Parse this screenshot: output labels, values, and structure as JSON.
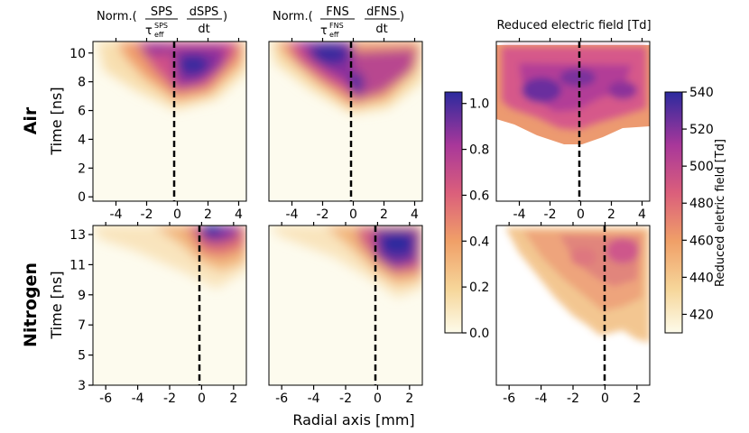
{
  "figure": {
    "x_axis_label": "Radial axis [mm]",
    "row_labels": [
      {
        "name": "Air",
        "ylabel": "Time [ns]"
      },
      {
        "name": "Nitrogen",
        "ylabel": "Time [ns]"
      }
    ],
    "column_titles": {
      "sps": {
        "prefix": "Norm.(",
        "num": "SPS",
        "den_main": "τ",
        "den_sup": "SPS",
        "den_sub": "eff",
        "deriv_num": "dSPS",
        "deriv_den": "dt",
        "suffix": ")"
      },
      "fns": {
        "prefix": "Norm.(",
        "num": "FNS",
        "den_main": "τ",
        "den_sup": "FNS",
        "den_sub": "eff",
        "deriv_num": "dFNS",
        "deriv_den": "dt",
        "suffix": ")"
      },
      "field": "Reduced electric field [Td]"
    },
    "colorbar_norm": {
      "ticks": [
        "0.0",
        "0.2",
        "0.4",
        "0.6",
        "0.8",
        "1.0"
      ],
      "range": [
        0,
        1.05
      ]
    },
    "colorbar_field": {
      "label": "Reduced eletric field [Td]",
      "ticks": [
        "420",
        "440",
        "460",
        "480",
        "500",
        "520",
        "540"
      ],
      "range": [
        410,
        540
      ]
    }
  },
  "chart_data": [
    {
      "type": "heatmap",
      "name": "air-sps",
      "quantity": "Norm.(SPS/τ_eff^SPS) | dSPS/dt",
      "x_ticks": [
        "-4",
        "-2",
        "0",
        "2",
        "4"
      ],
      "y_ticks": [
        "0",
        "2",
        "4",
        "6",
        "8",
        "10"
      ],
      "xlim": [
        -5.5,
        4.5
      ],
      "ylim": [
        -0.3,
        10.8
      ],
      "divider_x": 0,
      "peak_region": {
        "x": [
          0,
          2.5
        ],
        "t": [
          7.5,
          10
        ],
        "value": 1.0
      }
    },
    {
      "type": "heatmap",
      "name": "air-fns",
      "quantity": "Norm.(FNS/τ_eff^FNS) | dFNS/dt",
      "x_ticks": [
        "-4",
        "-2",
        "0",
        "2",
        "4"
      ],
      "y_ticks": [
        "0",
        "2",
        "4",
        "6",
        "8",
        "10"
      ],
      "xlim": [
        -5.5,
        4.5
      ],
      "ylim": [
        -0.3,
        10.8
      ],
      "divider_x": 0,
      "peak_region": {
        "x": [
          -2.5,
          0.5
        ],
        "t": [
          8,
          10.5
        ],
        "value": 1.0
      }
    },
    {
      "type": "heatmap",
      "name": "air-field",
      "quantity": "Reduced electric field [Td]",
      "x_ticks": [
        "-4",
        "-2",
        "0",
        "2",
        "4"
      ],
      "xlim": [
        -5.5,
        4.5
      ],
      "ylim": [
        -0.3,
        10.8
      ],
      "divider_x": 0,
      "value_range": [
        420,
        540
      ],
      "peak_region": {
        "x": [
          -3,
          2
        ],
        "t": [
          6,
          9
        ],
        "value": 530
      }
    },
    {
      "type": "heatmap",
      "name": "nitrogen-sps",
      "quantity": "Norm.(SPS/τ_eff^SPS) | dSPS/dt",
      "x_ticks": [
        "-6",
        "-4",
        "-2",
        "0",
        "2"
      ],
      "y_ticks": [
        "3",
        "5",
        "7",
        "9",
        "11",
        "13"
      ],
      "xlim": [
        -6.8,
        2.8
      ],
      "ylim": [
        3,
        13.6
      ],
      "divider_x": 0,
      "peak_region": {
        "x": [
          0,
          1.5
        ],
        "t": [
          12.5,
          13.5
        ],
        "value": 1.0
      }
    },
    {
      "type": "heatmap",
      "name": "nitrogen-fns",
      "quantity": "Norm.(FNS/τ_eff^FNS) | dFNS/dt",
      "x_ticks": [
        "-6",
        "-4",
        "-2",
        "0",
        "2"
      ],
      "y_ticks": [
        "3",
        "5",
        "7",
        "9",
        "11",
        "13"
      ],
      "xlim": [
        -6.8,
        2.8
      ],
      "ylim": [
        3,
        13.6
      ],
      "divider_x": 0,
      "peak_region": {
        "x": [
          0,
          2.3
        ],
        "t": [
          11.5,
          13.2
        ],
        "value": 1.0
      }
    },
    {
      "type": "heatmap",
      "name": "nitrogen-field",
      "quantity": "Reduced electric field [Td]",
      "x_ticks": [
        "-6",
        "-4",
        "-2",
        "0",
        "2"
      ],
      "xlim": [
        -6.8,
        2.8
      ],
      "ylim": [
        3,
        13.6
      ],
      "divider_x": 0,
      "value_range": [
        420,
        540
      ],
      "peak_region": {
        "x": [
          0,
          2
        ],
        "t": [
          10,
          12
        ],
        "value": 505
      }
    }
  ]
}
